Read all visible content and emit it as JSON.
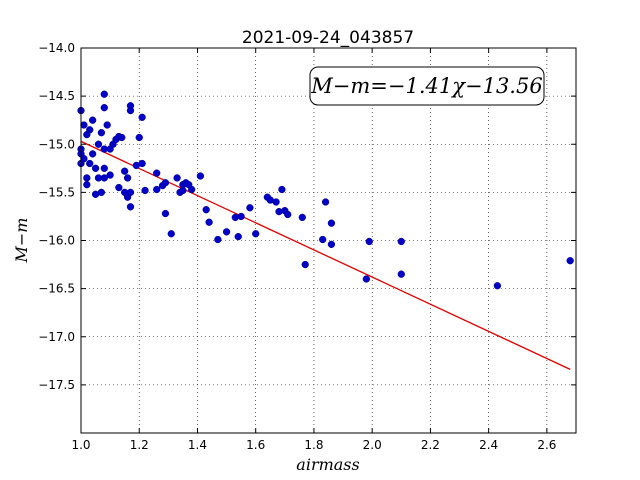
{
  "chart_data": {
    "type": "scatter",
    "title": "2021-09-24_043857",
    "xlabel": "airmass",
    "ylabel": "M−m",
    "xlim": [
      1.0,
      2.7
    ],
    "ylim": [
      -14.0,
      -18.0
    ],
    "y_inverted": true,
    "grid": true,
    "x_ticks": [
      "1.0",
      "1.2",
      "1.4",
      "1.6",
      "1.8",
      "2.0",
      "2.2",
      "2.4",
      "2.6"
    ],
    "y_ticks": [
      "−14.0",
      "−14.5",
      "−15.0",
      "−15.5",
      "−16.0",
      "−16.5",
      "−17.0",
      "−17.5"
    ],
    "annotation": "M−m=−1.41χ−13.56",
    "annotation_position": "top-right",
    "fit": {
      "slope": -1.41,
      "intercept": -13.56,
      "x_range": [
        1.0,
        2.68
      ],
      "color": "#dd0000"
    },
    "point_color": "#0000c8",
    "points": [
      [
        1.0,
        -14.65
      ],
      [
        1.0,
        -15.05
      ],
      [
        1.0,
        -15.1
      ],
      [
        1.0,
        -15.2
      ],
      [
        1.01,
        -14.8
      ],
      [
        1.01,
        -15.15
      ],
      [
        1.02,
        -14.9
      ],
      [
        1.02,
        -15.35
      ],
      [
        1.02,
        -15.42
      ],
      [
        1.03,
        -14.85
      ],
      [
        1.03,
        -15.2
      ],
      [
        1.04,
        -14.75
      ],
      [
        1.04,
        -15.1
      ],
      [
        1.05,
        -15.25
      ],
      [
        1.05,
        -15.52
      ],
      [
        1.06,
        -15.0
      ],
      [
        1.06,
        -15.35
      ],
      [
        1.07,
        -14.88
      ],
      [
        1.07,
        -15.5
      ],
      [
        1.08,
        -14.48
      ],
      [
        1.08,
        -14.62
      ],
      [
        1.08,
        -15.05
      ],
      [
        1.08,
        -15.25
      ],
      [
        1.08,
        -15.35
      ],
      [
        1.09,
        -14.8
      ],
      [
        1.1,
        -15.05
      ],
      [
        1.1,
        -15.32
      ],
      [
        1.11,
        -15.0
      ],
      [
        1.12,
        -14.95
      ],
      [
        1.13,
        -14.92
      ],
      [
        1.13,
        -15.45
      ],
      [
        1.14,
        -14.93
      ],
      [
        1.15,
        -15.28
      ],
      [
        1.15,
        -15.5
      ],
      [
        1.16,
        -15.35
      ],
      [
        1.16,
        -15.55
      ],
      [
        1.17,
        -14.6
      ],
      [
        1.17,
        -14.65
      ],
      [
        1.17,
        -15.5
      ],
      [
        1.17,
        -15.65
      ],
      [
        1.19,
        -15.22
      ],
      [
        1.2,
        -14.93
      ],
      [
        1.21,
        -14.72
      ],
      [
        1.21,
        -15.2
      ],
      [
        1.22,
        -15.48
      ],
      [
        1.26,
        -15.3
      ],
      [
        1.26,
        -15.47
      ],
      [
        1.28,
        -15.43
      ],
      [
        1.29,
        -15.4
      ],
      [
        1.29,
        -15.72
      ],
      [
        1.31,
        -15.93
      ],
      [
        1.33,
        -15.35
      ],
      [
        1.34,
        -15.5
      ],
      [
        1.35,
        -15.42
      ],
      [
        1.35,
        -15.48
      ],
      [
        1.36,
        -15.4
      ],
      [
        1.37,
        -15.42
      ],
      [
        1.38,
        -15.47
      ],
      [
        1.41,
        -15.33
      ],
      [
        1.43,
        -15.68
      ],
      [
        1.44,
        -15.81
      ],
      [
        1.47,
        -15.99
      ],
      [
        1.5,
        -15.91
      ],
      [
        1.53,
        -15.76
      ],
      [
        1.54,
        -15.96
      ],
      [
        1.55,
        -15.75
      ],
      [
        1.58,
        -15.66
      ],
      [
        1.6,
        -15.93
      ],
      [
        1.64,
        -15.55
      ],
      [
        1.65,
        -15.58
      ],
      [
        1.67,
        -15.6
      ],
      [
        1.68,
        -15.7
      ],
      [
        1.69,
        -15.47
      ],
      [
        1.7,
        -15.69
      ],
      [
        1.71,
        -15.73
      ],
      [
        1.76,
        -15.76
      ],
      [
        1.77,
        -16.25
      ],
      [
        1.83,
        -15.99
      ],
      [
        1.84,
        -15.6
      ],
      [
        1.86,
        -15.82
      ],
      [
        1.86,
        -16.04
      ],
      [
        1.98,
        -16.4
      ],
      [
        1.99,
        -16.01
      ],
      [
        2.1,
        -16.01
      ],
      [
        2.1,
        -16.35
      ],
      [
        2.43,
        -16.47
      ],
      [
        2.68,
        -16.21
      ]
    ]
  }
}
